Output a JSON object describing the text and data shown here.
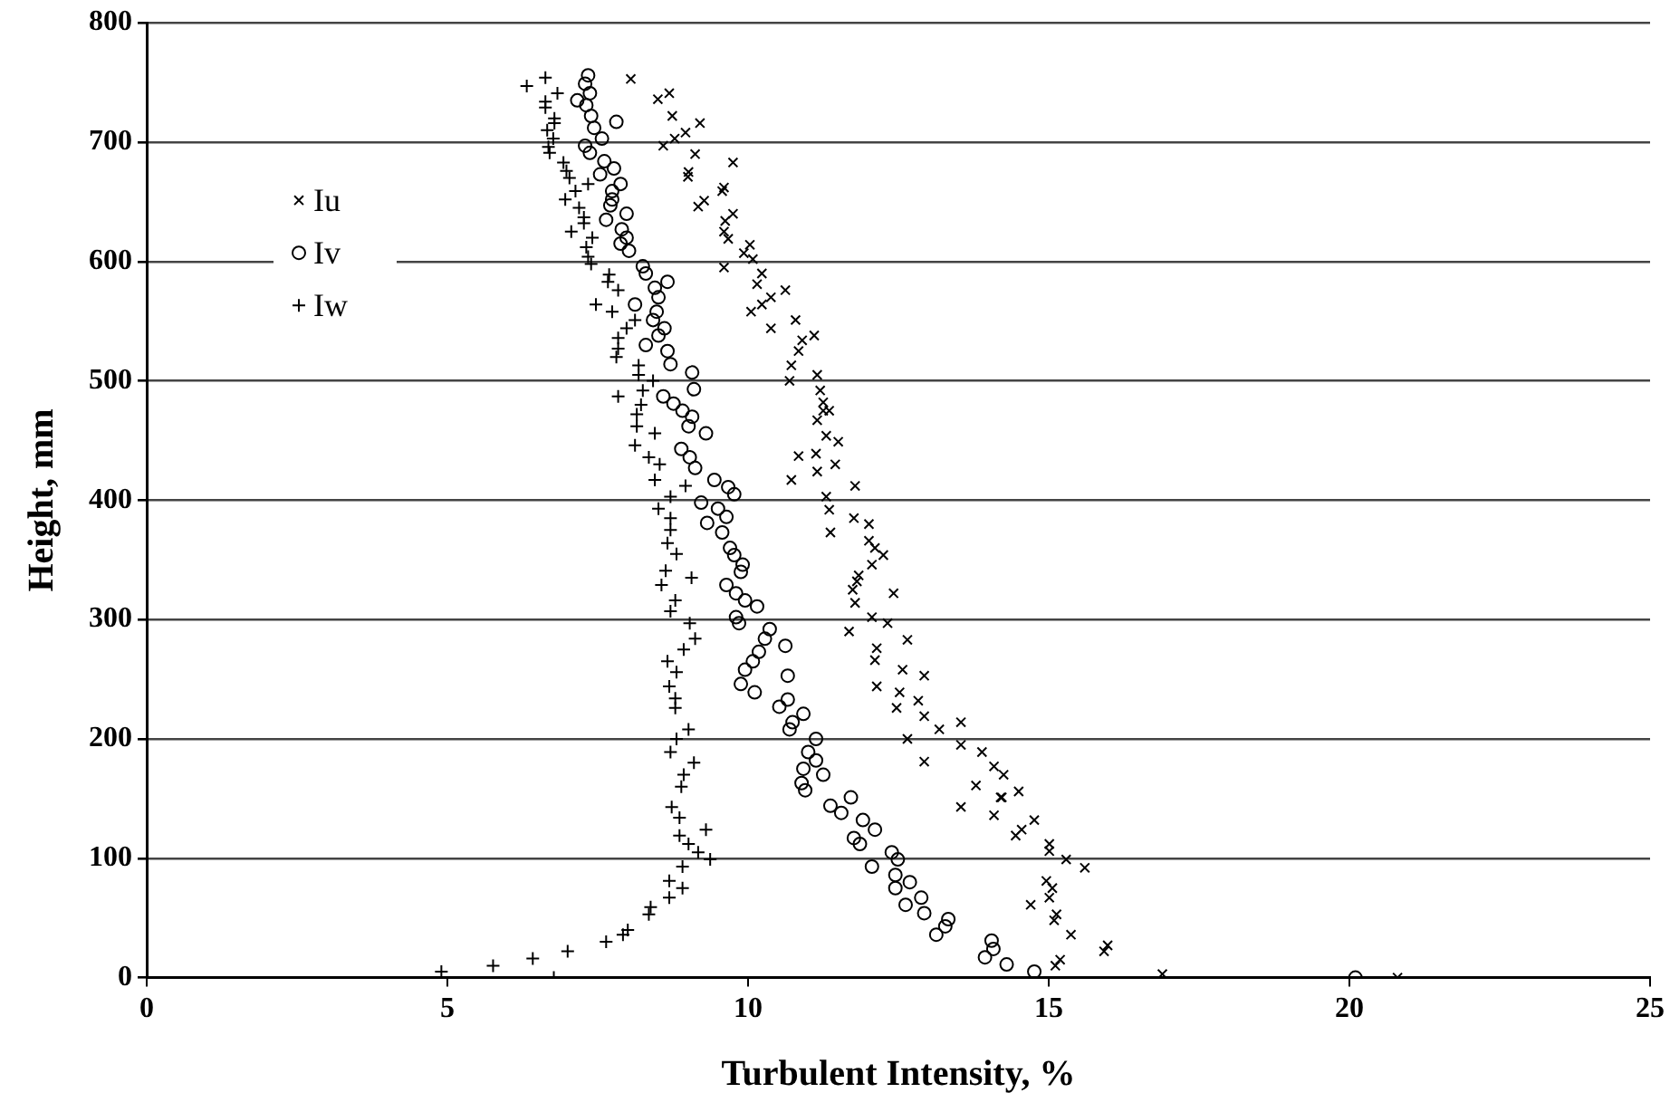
{
  "chart_data": {
    "type": "scatter",
    "xlabel": "Turbulent Intensity, %",
    "ylabel": "Height, mm",
    "xlim": [
      0,
      25
    ],
    "xticks": [
      0,
      5,
      10,
      15,
      20,
      25
    ],
    "ylim": [
      0,
      800
    ],
    "yticks": [
      0,
      100,
      200,
      300,
      400,
      500,
      600,
      700,
      800
    ],
    "grid": "y",
    "legend": "top left",
    "series": [
      {
        "name": "Iu",
        "color": "#000000",
        "marker": "x",
        "x": [
          8.05,
          8.5,
          8.69,
          8.74,
          8.96,
          9.2,
          8.59,
          8.78,
          9.12,
          9.75,
          9.01,
          9.0,
          9.6,
          9.57,
          9.27,
          9.17,
          9.75,
          9.62,
          9.6,
          9.67,
          10.03,
          9.93,
          10.08,
          9.6,
          10.23,
          10.15,
          10.38,
          10.62,
          10.23,
          10.05,
          10.38,
          10.79,
          11.1,
          10.9,
          10.84,
          10.72,
          11.15,
          10.69,
          11.2,
          11.25,
          11.35,
          11.15,
          11.3,
          11.25,
          11.5,
          10.84,
          11.13,
          11.45,
          10.72,
          11.15,
          11.78,
          11.3,
          11.35,
          11.76,
          12.01,
          11.37,
          12.01,
          12.11,
          12.25,
          12.06,
          11.84,
          11.81,
          11.74,
          12.42,
          11.78,
          12.06,
          12.32,
          11.68,
          12.65,
          12.14,
          12.11,
          12.57,
          12.93,
          12.14,
          12.52,
          12.83,
          12.47,
          12.93,
          13.54,
          13.18,
          12.65,
          13.54,
          13.89,
          14.09,
          12.93,
          14.25,
          13.79,
          14.5,
          14.2,
          13.54,
          14.09,
          14.22,
          14.45,
          14.76,
          14.55,
          15.01,
          15.01,
          15.29,
          15.6,
          14.96,
          15.06,
          14.7,
          15.01,
          15.13,
          15.09,
          15.37,
          15.98,
          15.92,
          15.19,
          15.11,
          16.89,
          20.8
        ],
        "values": [
          753,
          736,
          741,
          722,
          708,
          716,
          697,
          703,
          690,
          683,
          675,
          671,
          662,
          659,
          651,
          646,
          640,
          634,
          625,
          619,
          614,
          607,
          602,
          595,
          590,
          581,
          570,
          576,
          564,
          558,
          544,
          551,
          538,
          534,
          525,
          513,
          505,
          500,
          492,
          482,
          475,
          467,
          454,
          475,
          449,
          437,
          439,
          430,
          417,
          424,
          412,
          403,
          392,
          385,
          380,
          373,
          366,
          360,
          354,
          346,
          337,
          332,
          325,
          322,
          314,
          302,
          297,
          290,
          283,
          276,
          266,
          258,
          253,
          244,
          239,
          232,
          226,
          219,
          214,
          208,
          200,
          195,
          189,
          177,
          181,
          170,
          161,
          156,
          151,
          143,
          136,
          151,
          119,
          132,
          124,
          112,
          106,
          99,
          92,
          81,
          75,
          61,
          67,
          53,
          48,
          36,
          27,
          22,
          15,
          10,
          3,
          0
        ]
      },
      {
        "name": "Iv",
        "color": "#000000",
        "marker": "circle",
        "x": [
          7.34,
          7.29,
          7.37,
          7.16,
          7.31,
          7.39,
          7.81,
          7.44,
          7.57,
          7.29,
          7.37,
          7.61,
          7.77,
          7.54,
          7.88,
          7.74,
          7.74,
          7.71,
          7.98,
          7.64,
          7.9,
          7.98,
          7.88,
          8.02,
          8.25,
          8.3,
          8.66,
          8.45,
          8.51,
          8.12,
          8.48,
          8.42,
          8.61,
          8.51,
          8.3,
          8.66,
          8.71,
          9.07,
          9.1,
          8.59,
          8.76,
          8.91,
          9.07,
          9.01,
          9.3,
          8.89,
          9.03,
          9.12,
          9.44,
          9.67,
          9.77,
          9.22,
          9.5,
          9.64,
          9.32,
          9.57,
          9.7,
          9.77,
          9.91,
          9.88,
          9.64,
          9.8,
          9.95,
          10.15,
          9.8,
          9.85,
          10.36,
          10.28,
          10.62,
          10.18,
          10.08,
          9.95,
          10.66,
          9.88,
          10.11,
          10.66,
          10.52,
          10.92,
          10.74,
          10.69,
          11.13,
          11.0,
          11.13,
          10.92,
          11.25,
          10.89,
          10.95,
          11.71,
          11.37,
          11.55,
          11.91,
          12.11,
          11.76,
          11.86,
          12.39,
          12.49,
          12.06,
          12.45,
          12.69,
          12.45,
          12.88,
          12.62,
          12.93,
          13.33,
          13.28,
          13.13,
          14.05,
          14.08,
          13.94,
          14.3,
          14.76,
          20.1
        ],
        "values": [
          756,
          749,
          741,
          735,
          731,
          722,
          717,
          712,
          703,
          697,
          691,
          684,
          678,
          673,
          665,
          659,
          652,
          647,
          640,
          635,
          627,
          620,
          615,
          609,
          596,
          590,
          583,
          578,
          570,
          564,
          558,
          551,
          544,
          538,
          530,
          525,
          514,
          507,
          493,
          487,
          481,
          475,
          470,
          462,
          456,
          443,
          436,
          427,
          417,
          411,
          405,
          398,
          393,
          386,
          381,
          373,
          360,
          354,
          346,
          340,
          329,
          322,
          316,
          311,
          302,
          297,
          292,
          284,
          278,
          273,
          265,
          258,
          253,
          246,
          239,
          233,
          227,
          221,
          214,
          208,
          200,
          189,
          182,
          175,
          170,
          163,
          157,
          151,
          144,
          138,
          132,
          124,
          117,
          112,
          105,
          99,
          93,
          86,
          80,
          75,
          67,
          61,
          54,
          49,
          43,
          36,
          31,
          24,
          17,
          11,
          5,
          0
        ]
      },
      {
        "name": "Iw",
        "color": "#000000",
        "marker": "cross",
        "x": [
          6.32,
          6.63,
          6.83,
          6.63,
          6.63,
          6.78,
          6.78,
          6.66,
          6.76,
          6.68,
          6.7,
          6.93,
          6.98,
          7.03,
          7.34,
          7.13,
          6.96,
          7.19,
          7.27,
          7.27,
          7.06,
          7.41,
          7.31,
          7.34,
          7.39,
          7.69,
          7.67,
          7.84,
          7.47,
          7.74,
          8.12,
          7.98,
          7.84,
          7.84,
          7.81,
          8.18,
          8.18,
          8.42,
          7.84,
          8.25,
          8.22,
          8.15,
          8.15,
          8.45,
          8.12,
          8.35,
          8.53,
          8.45,
          8.71,
          8.96,
          8.51,
          8.71,
          8.71,
          8.66,
          8.81,
          8.63,
          9.06,
          8.56,
          8.79,
          8.71,
          9.03,
          9.12,
          8.93,
          8.66,
          8.81,
          8.69,
          8.79,
          8.79,
          9.01,
          8.81,
          8.71,
          9.1,
          8.93,
          8.89,
          8.73,
          8.86,
          9.3,
          8.86,
          9.01,
          9.17,
          9.37,
          8.91,
          8.69,
          8.91,
          8.69,
          8.38,
          8.35,
          8.0,
          7.92,
          7.64,
          7.0,
          6.42,
          5.76,
          4.9,
          6.77
        ],
        "values": [
          747,
          754,
          741,
          734,
          729,
          720,
          716,
          710,
          703,
          696,
          691,
          683,
          676,
          670,
          665,
          659,
          652,
          645,
          637,
          632,
          625,
          620,
          612,
          604,
          598,
          589,
          583,
          576,
          564,
          558,
          551,
          544,
          536,
          527,
          520,
          513,
          505,
          500,
          487,
          492,
          480,
          472,
          462,
          456,
          446,
          436,
          430,
          417,
          403,
          412,
          393,
          385,
          375,
          364,
          355,
          341,
          335,
          329,
          316,
          307,
          297,
          284,
          275,
          265,
          256,
          244,
          234,
          226,
          208,
          200,
          189,
          180,
          170,
          160,
          143,
          134,
          124,
          119,
          112,
          105,
          99,
          93,
          81,
          75,
          67,
          59,
          53,
          40,
          36,
          30,
          22,
          16,
          10,
          5,
          0
        ]
      }
    ]
  }
}
